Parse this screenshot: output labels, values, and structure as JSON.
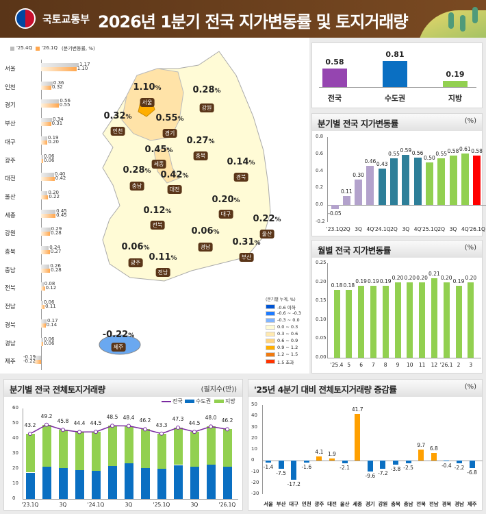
{
  "header": {
    "org": "국토교통부",
    "title": "2026년 1분기 전국 지가변동률 및 토지거래량"
  },
  "region_legend": {
    "prev": "'25.4Q",
    "curr": "'26.1Q",
    "unit": "(분기변동률, %)"
  },
  "region_bars": [
    {
      "name": "서울",
      "prev": 1.17,
      "curr": 1.1
    },
    {
      "name": "인천",
      "prev": 0.36,
      "curr": 0.32
    },
    {
      "name": "경기",
      "prev": 0.56,
      "curr": 0.55
    },
    {
      "name": "부산",
      "prev": 0.34,
      "curr": 0.31
    },
    {
      "name": "대구",
      "prev": 0.19,
      "curr": 0.2
    },
    {
      "name": "광주",
      "prev": 0.06,
      "curr": 0.06
    },
    {
      "name": "대전",
      "prev": 0.4,
      "curr": 0.42
    },
    {
      "name": "울산",
      "prev": 0.2,
      "curr": 0.22
    },
    {
      "name": "세종",
      "prev": 0.45,
      "curr": 0.45
    },
    {
      "name": "강원",
      "prev": 0.29,
      "curr": 0.28
    },
    {
      "name": "충북",
      "prev": 0.24,
      "curr": 0.27
    },
    {
      "name": "충남",
      "prev": 0.26,
      "curr": 0.28
    },
    {
      "name": "전북",
      "prev": 0.08,
      "curr": 0.12
    },
    {
      "name": "전남",
      "prev": 0.06,
      "curr": 0.11
    },
    {
      "name": "경북",
      "prev": 0.17,
      "curr": 0.14
    },
    {
      "name": "경남",
      "prev": 0.06,
      "curr": 0.06
    },
    {
      "name": "제주",
      "prev": -0.19,
      "curr": -0.22
    }
  ],
  "map_regions": [
    {
      "name": "서울",
      "value": "1.10"
    },
    {
      "name": "강원",
      "value": "0.28"
    },
    {
      "name": "인천",
      "value": "0.32"
    },
    {
      "name": "경기",
      "value": "0.55"
    },
    {
      "name": "충북",
      "value": "0.27"
    },
    {
      "name": "세종",
      "value": "0.45"
    },
    {
      "name": "경북",
      "value": "0.14"
    },
    {
      "name": "충남",
      "value": "0.28"
    },
    {
      "name": "대전",
      "value": "0.42"
    },
    {
      "name": "대구",
      "value": "0.20"
    },
    {
      "name": "전북",
      "value": "0.12"
    },
    {
      "name": "울산",
      "value": "0.22"
    },
    {
      "name": "경남",
      "value": "0.06"
    },
    {
      "name": "부산",
      "value": "0.31"
    },
    {
      "name": "광주",
      "value": "0.06"
    },
    {
      "name": "전남",
      "value": "0.11"
    },
    {
      "name": "제주",
      "value": "-0.22"
    }
  ],
  "pct_sign": "%",
  "map_legend": {
    "title": "(분기별 누계, %)",
    "items": [
      {
        "label": "-0.6 이하",
        "color": "#0055d4"
      },
      {
        "label": "-0.6 ~ -0.3",
        "color": "#1e7bff"
      },
      {
        "label": "-0.3 ~ 0.0",
        "color": "#7fb4ff"
      },
      {
        "label": "0.0 ~ 0.3",
        "color": "#fffbd6"
      },
      {
        "label": "0.3 ~ 0.6",
        "color": "#ffe9b0"
      },
      {
        "label": "0.6 ~ 0.9",
        "color": "#ffd47f"
      },
      {
        "label": "0.9 ~ 1.2",
        "color": "#ffae00"
      },
      {
        "label": "1.2 ~ 1.5",
        "color": "#f07a10"
      },
      {
        "label": "1.5 초과",
        "color": "#ff3300"
      }
    ]
  },
  "summary": {
    "items": [
      {
        "label": "전국",
        "value": 0.58,
        "color": "#9545b0"
      },
      {
        "label": "수도권",
        "value": 0.81,
        "color": "#0a6fc2"
      },
      {
        "label": "지방",
        "value": 0.19,
        "color": "#92d050"
      }
    ]
  },
  "chart_data": [
    {
      "type": "bar",
      "title": "분기별 전국 지가변동률",
      "unit": "(%)",
      "ylim": [
        -0.2,
        0.8
      ],
      "yticks": [
        "0.8",
        "0.6",
        "0.4",
        "0.2",
        "0.0",
        "-0.2"
      ],
      "categories": [
        "'23.1Q",
        "2Q",
        "3Q",
        "4Q",
        "'24.1Q",
        "2Q",
        "3Q",
        "4Q",
        "'25.1Q",
        "2Q",
        "3Q",
        "4Q",
        "'26.1Q"
      ],
      "values": [
        -0.05,
        0.11,
        0.3,
        0.46,
        0.43,
        0.55,
        0.59,
        0.56,
        0.5,
        0.55,
        0.58,
        0.61,
        0.58
      ],
      "labels": [
        "-0.05",
        "0.11",
        "0.30",
        "0.46",
        "0.43",
        "0.55",
        "0.59",
        "0.56",
        "0.50",
        "0.55",
        "0.58",
        "0.61",
        "0.58"
      ],
      "colors": [
        "#b3a2cc",
        "#b3a2cc",
        "#b3a2cc",
        "#b3a2cc",
        "#2e7f99",
        "#2e7f99",
        "#2e7f99",
        "#2e7f99",
        "#92d050",
        "#92d050",
        "#92d050",
        "#92d050",
        "#ff0000"
      ]
    },
    {
      "type": "bar",
      "title": "월별 전국 지가변동률",
      "unit": "(%)",
      "ylim": [
        0,
        0.25
      ],
      "yticks": [
        "0.25",
        "0.20",
        "0.15",
        "0.10",
        "0.05",
        "0.00"
      ],
      "categories": [
        "'25.4",
        "5",
        "6",
        "7",
        "8",
        "9",
        "10",
        "11",
        "12",
        "'26.1",
        "2",
        "3"
      ],
      "values": [
        0.18,
        0.18,
        0.19,
        0.19,
        0.19,
        0.2,
        0.2,
        0.2,
        0.21,
        0.2,
        0.19,
        0.2
      ],
      "labels": [
        "0.18",
        "0.18",
        "0.19",
        "0.19",
        "0.19",
        "0.20",
        "0.20",
        "0.20",
        "0.21",
        "0.20",
        "0.19",
        "0.20"
      ],
      "color": "#92d050"
    },
    {
      "type": "bar",
      "stacked": true,
      "title": "분기별 전국 전체토지거래량",
      "unit": "(필지수(만))",
      "ylim": [
        0,
        60
      ],
      "yticks": [
        "60",
        "50",
        "40",
        "30",
        "20",
        "10",
        "0"
      ],
      "categories": [
        "'23.1Q",
        "",
        "3Q",
        "",
        "'24.1Q",
        "",
        "3Q",
        "",
        "'25.1Q",
        "",
        "3Q",
        "",
        "'26.1Q"
      ],
      "series": [
        {
          "name": "전국",
          "type": "line",
          "color": "#7a2aa0",
          "values": [
            43.2,
            49.2,
            45.8,
            44.4,
            44.5,
            48.5,
            48.4,
            46.2,
            43.3,
            47.3,
            44.5,
            48.0,
            46.2
          ]
        },
        {
          "name": "수도권",
          "color": "#0a6fc2",
          "values": [
            17.5,
            21.5,
            20.3,
            18.9,
            18.5,
            21.9,
            23.5,
            20.5,
            20.2,
            22.5,
            21.5,
            22.8,
            21.2
          ]
        },
        {
          "name": "지방",
          "color": "#92d050",
          "values": [
            25.7,
            27.7,
            25.5,
            25.5,
            26.0,
            26.6,
            24.9,
            25.7,
            23.1,
            24.8,
            23.0,
            25.2,
            25.0
          ]
        }
      ]
    },
    {
      "type": "bar",
      "title": "'25년 4분기 대비 전체토지거래량 증감률",
      "unit": "(%)",
      "ylim": [
        -30,
        50
      ],
      "yticks": [
        "50",
        "40",
        "30",
        "20",
        "10",
        "0",
        "-10",
        "-20",
        "-30"
      ],
      "categories": [
        "서울",
        "부산",
        "대구",
        "인천",
        "광주",
        "대전",
        "울산",
        "세종",
        "경기",
        "강원",
        "충북",
        "충남",
        "전북",
        "전남",
        "경북",
        "경남",
        "제주"
      ],
      "values": [
        -1.4,
        -7.5,
        -17.2,
        -1.6,
        4.1,
        1.9,
        -2.1,
        41.7,
        -9.6,
        -7.2,
        -3.8,
        -2.5,
        9.7,
        6.8,
        -0.4,
        -2.2,
        -6.8
      ],
      "labels": [
        "-1.4",
        "-7.5",
        "-17.2",
        "-1.6",
        "4.1",
        "1.9",
        "-2.1",
        "41.7",
        "-9.6",
        "-7.2",
        "-3.8",
        "-2.5",
        "9.7",
        "6.8",
        "-0.4",
        "-2.2",
        "-6.8"
      ],
      "positive_color": "#ffa000",
      "negative_color": "#0a6fc2"
    }
  ]
}
